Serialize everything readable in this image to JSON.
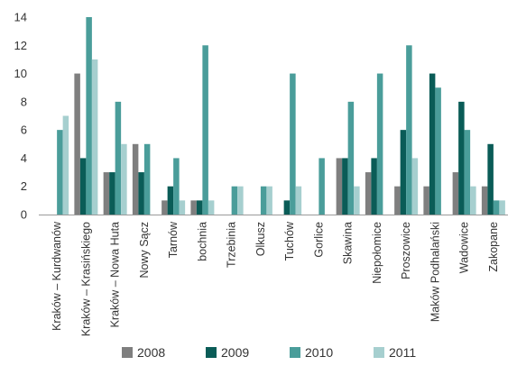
{
  "chart_data": {
    "type": "bar",
    "categories": [
      "Kraków – Kurdwanów",
      "Kraków – Krasińskiego",
      "Kraków – Nowa Huta",
      "Nowy Sącz",
      "Tarnów",
      "bochnia",
      "Trzebinia",
      "Olkusz",
      "Tuchów",
      "Gorlice",
      "Skawina",
      "Niepołomice",
      "Proszowice",
      "Maków Podhalański",
      "Wadowice",
      "Zakopane"
    ],
    "series": [
      {
        "name": "2008",
        "color": "#7f7f7f",
        "values": [
          0,
          10,
          3,
          5,
          1,
          1,
          0,
          0,
          0,
          0,
          4,
          3,
          2,
          2,
          3,
          2
        ]
      },
      {
        "name": "2009",
        "color": "#0a5c57",
        "values": [
          0,
          4,
          3,
          3,
          2,
          1,
          0,
          0,
          1,
          0,
          4,
          4,
          6,
          10,
          8,
          5
        ]
      },
      {
        "name": "2010",
        "color": "#4a9d9a",
        "values": [
          6,
          14,
          8,
          5,
          4,
          12,
          2,
          2,
          10,
          4,
          8,
          10,
          12,
          9,
          6,
          1
        ]
      },
      {
        "name": "2011",
        "color": "#a6cfcf",
        "values": [
          7,
          11,
          5,
          0,
          1,
          1,
          2,
          2,
          2,
          0,
          2,
          0,
          4,
          0,
          2,
          1
        ]
      }
    ],
    "ylim": [
      0,
      14
    ],
    "yticks": [
      "0",
      "2",
      "4",
      "6",
      "8",
      "10",
      "12",
      "14"
    ],
    "legend_position": "bottom",
    "grid": false
  }
}
